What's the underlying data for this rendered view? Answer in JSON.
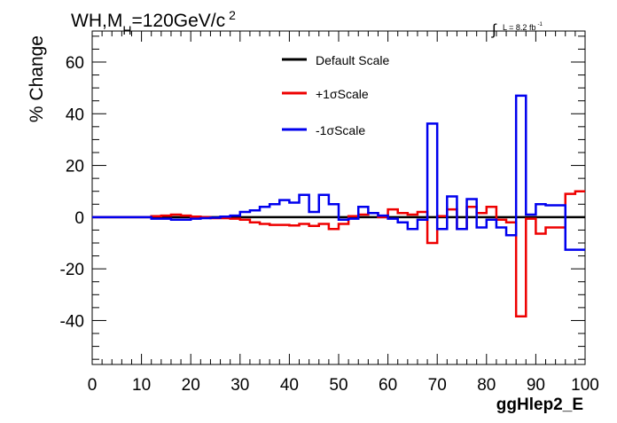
{
  "header": {
    "title": "WH,M",
    "title_sub": "H",
    "title_rest": "=120GeV/c",
    "title_sup": "2",
    "lumi_symbol": "∫",
    "lumi_text": "L = 8.2 fb",
    "lumi_sup": "-1"
  },
  "chart_data": {
    "type": "line",
    "title": "WH,MH=120GeV/c2",
    "xlabel": "ggHlep2_E",
    "ylabel": "% Change",
    "xlim": [
      0,
      100
    ],
    "ylim": [
      -57,
      72
    ],
    "grid": false,
    "legend_placement": "top-center",
    "x_ticks": [
      0,
      10,
      20,
      30,
      40,
      50,
      60,
      70,
      80,
      90,
      100
    ],
    "x_tick_labels": [
      "0",
      "10",
      "20",
      "30",
      "40",
      "50",
      "60",
      "70",
      "80",
      "90",
      "100"
    ],
    "y_ticks": [
      -40,
      -20,
      0,
      20,
      40,
      60
    ],
    "y_tick_labels": [
      "-40",
      "-20",
      "0",
      "20",
      "40",
      "60"
    ],
    "bin_edges": [
      0,
      2,
      4,
      6,
      8,
      10,
      12,
      14,
      16,
      18,
      20,
      22,
      24,
      26,
      28,
      30,
      32,
      34,
      36,
      38,
      40,
      42,
      44,
      46,
      48,
      50,
      52,
      54,
      56,
      58,
      60,
      62,
      64,
      66,
      68,
      70,
      72,
      74,
      76,
      78,
      80,
      82,
      84,
      86,
      88,
      90,
      92,
      94,
      96,
      98,
      100
    ],
    "series": [
      {
        "name": "Default Scale",
        "color": "#000000",
        "values": [
          0,
          0,
          0,
          0,
          0,
          0,
          0,
          0,
          0,
          0,
          0,
          0,
          0,
          0,
          0,
          0,
          0,
          0,
          0,
          0,
          0,
          0,
          0,
          0,
          0,
          0,
          0,
          0,
          0,
          0,
          0,
          0,
          0,
          0,
          0,
          0,
          0,
          0,
          0,
          0,
          0,
          0,
          0,
          0,
          0,
          0,
          0,
          0,
          0,
          0
        ]
      },
      {
        "name": "+1σScale",
        "color": "#ee0000",
        "values": [
          0,
          0,
          0,
          0,
          0,
          0,
          0.4,
          0.6,
          1,
          0.6,
          0.2,
          0,
          -0.4,
          -0.4,
          -0.6,
          -1,
          -2,
          -2.6,
          -3,
          -3,
          -3.2,
          -2.6,
          -3.4,
          -2.6,
          -4.6,
          -2.6,
          0.4,
          1,
          1.6,
          0,
          3,
          1.6,
          1,
          2,
          -10,
          0.4,
          3,
          -4.6,
          4,
          1.6,
          4,
          -1,
          -2,
          -38.4,
          -0.6,
          -6.4,
          -4,
          -4,
          9,
          10
        ]
      },
      {
        "name": "-1σScale",
        "color": "#0000ee",
        "values": [
          0,
          0,
          0,
          0,
          0,
          0,
          -0.6,
          -0.6,
          -1,
          -1,
          -0.6,
          -0.4,
          -0.2,
          0.2,
          0.6,
          2,
          2.6,
          4,
          5,
          6.6,
          5.6,
          8.6,
          2,
          8.6,
          5,
          -1,
          -0.6,
          4,
          1.6,
          0.6,
          -0.6,
          -2,
          -4.6,
          -1,
          36.2,
          -4.6,
          8,
          -4.6,
          7,
          -4,
          -1,
          -4,
          -7,
          47,
          1,
          5,
          4.6,
          4.6,
          -12.6,
          -12.6
        ]
      }
    ]
  }
}
